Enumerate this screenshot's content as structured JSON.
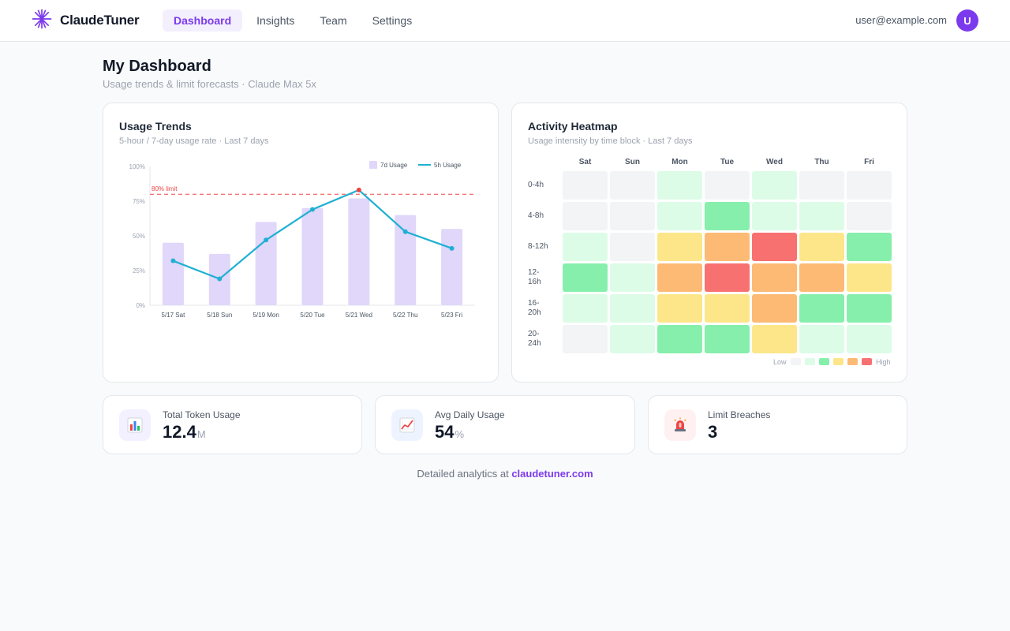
{
  "app": {
    "brand": "ClaudeTuner",
    "nav": [
      {
        "label": "Dashboard",
        "active": true
      },
      {
        "label": "Insights",
        "active": false
      },
      {
        "label": "Team",
        "active": false
      },
      {
        "label": "Settings",
        "active": false
      }
    ],
    "user_email": "user@example.com",
    "avatar_initial": "U"
  },
  "page": {
    "title": "My Dashboard",
    "subtitle": "Usage trends & limit forecasts · Claude Max 5x"
  },
  "trend_card": {
    "title": "Usage Trends",
    "subtitle": "5-hour / 7-day usage rate · Last 7 days"
  },
  "chart_data": {
    "type": "bar",
    "categories": [
      "5/17 Sat",
      "5/18 Sun",
      "5/19 Mon",
      "5/20 Tue",
      "5/21 Wed",
      "5/22 Thu",
      "5/23 Fri"
    ],
    "series": [
      {
        "name": "7d Usage",
        "type": "bar",
        "color": "#e0d7fa",
        "values": [
          45,
          37,
          60,
          70,
          77,
          65,
          55
        ]
      },
      {
        "name": "5h Usage",
        "type": "line",
        "color": "#1fb0d3",
        "values": [
          32,
          19,
          47,
          69,
          83,
          53,
          41
        ]
      }
    ],
    "y_ticks": [
      "0%",
      "25%",
      "50%",
      "75%",
      "100%"
    ],
    "ylim": [
      0,
      100
    ],
    "threshold": {
      "value": 80,
      "label": "80% limit",
      "color": "#ef4444"
    },
    "highlight_point": {
      "series": "5h Usage",
      "category": "5/21 Wed",
      "color": "#ef4444"
    },
    "legend_position": "top-right",
    "grid": false
  },
  "heat_card": {
    "title": "Activity Heatmap",
    "subtitle": "Usage intensity by time block · Last 7 days",
    "days": [
      "Sat",
      "Sun",
      "Mon",
      "Tue",
      "Wed",
      "Thu",
      "Fri"
    ],
    "blocks": [
      "0-4h",
      "4-8h",
      "8-12h",
      "12-16h",
      "16-20h",
      "20-24h"
    ],
    "levels": [
      [
        0,
        0,
        1,
        0,
        1,
        0,
        0
      ],
      [
        0,
        0,
        1,
        2,
        1,
        1,
        0
      ],
      [
        1,
        0,
        3,
        4,
        5,
        3,
        2
      ],
      [
        2,
        1,
        4,
        5,
        4,
        4,
        3
      ],
      [
        1,
        1,
        3,
        3,
        4,
        2,
        2
      ],
      [
        0,
        1,
        2,
        2,
        3,
        1,
        1
      ]
    ],
    "level_colors": [
      "#f3f4f6",
      "#dcfce7",
      "#86efac",
      "#fde68a",
      "#fdba74",
      "#f87171"
    ],
    "legend_low": "Low",
    "legend_high": "High"
  },
  "stats": [
    {
      "label": "Total Token Usage",
      "value": "12.4",
      "unit": "M",
      "icon": "bar-chart-icon",
      "icon_bg": "#f3f0ff"
    },
    {
      "label": "Avg Daily Usage",
      "value": "54",
      "unit": "%",
      "icon": "trending-up-icon",
      "icon_bg": "#eef4ff"
    },
    {
      "label": "Limit Breaches",
      "value": "3",
      "unit": "",
      "icon": "siren-icon",
      "icon_bg": "#fff1f2"
    }
  ],
  "footer": {
    "text": "Detailed analytics at",
    "link": "claudetuner.com"
  }
}
